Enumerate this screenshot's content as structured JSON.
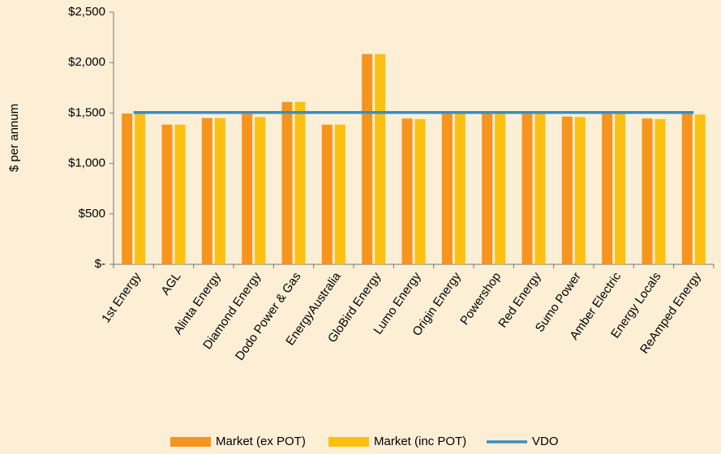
{
  "chart_data": {
    "type": "bar",
    "y_label": "$ per annum",
    "categories": [
      "1st Energy",
      "AGL",
      "Alinta Energy",
      "Diamond Energy",
      "Dodo Power & Gas",
      "EnergyAustralia",
      "GloBird Energy",
      "Lumo Energy",
      "Origin Energy",
      "Powershop",
      "Red Energy",
      "Sumo Power",
      "Amber Electric",
      "Energy Locals",
      "ReAmped Energy"
    ],
    "series": [
      {
        "name": "Market (ex POT)",
        "color": "#f7941d",
        "type": "bar",
        "values": [
          1495,
          1385,
          1450,
          1490,
          1610,
          1385,
          2085,
          1445,
          1500,
          1500,
          1500,
          1465,
          1500,
          1445,
          1500
        ]
      },
      {
        "name": "Market (inc POT)",
        "color": "#fdc010",
        "type": "bar",
        "values": [
          1495,
          1385,
          1450,
          1460,
          1610,
          1385,
          2085,
          1440,
          1500,
          1500,
          1500,
          1460,
          1500,
          1440,
          1485
        ]
      },
      {
        "name": "VDO",
        "color": "#3b8bc2",
        "type": "line",
        "values": [
          1505,
          1505,
          1505,
          1505,
          1505,
          1505,
          1505,
          1505,
          1505,
          1505,
          1505,
          1505,
          1505,
          1505,
          1505
        ]
      }
    ],
    "ylim": [
      0,
      2500
    ],
    "yticks": [
      {
        "value": 0,
        "label": "$-"
      },
      {
        "value": 500,
        "label": "$500"
      },
      {
        "value": 1000,
        "label": "$1,000"
      },
      {
        "value": 1500,
        "label": "$1,500"
      },
      {
        "value": 2000,
        "label": "$2,000"
      },
      {
        "value": 2500,
        "label": "$2,500"
      }
    ],
    "legend": "bottom"
  }
}
